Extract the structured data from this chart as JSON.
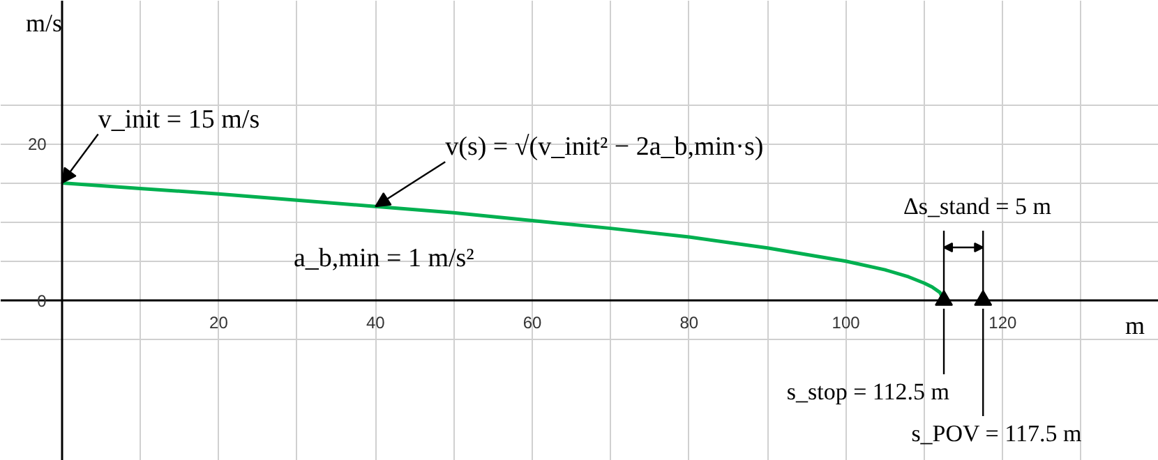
{
  "chart_data": {
    "type": "line",
    "xlabel": "m",
    "ylabel": "m/s",
    "x": [
      0,
      10,
      20,
      30,
      40,
      50,
      60,
      70,
      80,
      90,
      100,
      105,
      108,
      110,
      111,
      112,
      112.5
    ],
    "series": [
      {
        "color": "#00b050",
        "values": [
          15,
          14.3,
          13.6,
          12.8,
          12.0,
          11.2,
          10.2,
          9.2,
          8.1,
          6.7,
          5.0,
          3.9,
          3.0,
          2.2,
          1.7,
          1.0,
          0
        ]
      },
      {
        "type": "scatter",
        "marker": "triangle",
        "color": "#000000",
        "x": [
          112.5,
          117.5
        ],
        "values": [
          0,
          0
        ]
      }
    ],
    "xlim": [
      -7.8,
      139.9
    ],
    "ylim": [
      -20.5,
      38.3
    ],
    "xticks": [
      {
        "value": 0,
        "label": null
      },
      {
        "value": 10,
        "label": null
      },
      20,
      {
        "value": 30,
        "label": null
      },
      40,
      {
        "value": 50,
        "label": null
      },
      60,
      {
        "value": 70,
        "label": null
      },
      80,
      {
        "value": 90,
        "label": null
      },
      100,
      {
        "value": 110,
        "label": null
      },
      120,
      {
        "value": 130,
        "label": null
      }
    ],
    "yticks": [
      {
        "value": -5,
        "label": null
      },
      0,
      {
        "value": 5,
        "label": null
      },
      {
        "value": 10,
        "label": null
      },
      {
        "value": 15,
        "label": null
      },
      20,
      {
        "value": 25,
        "label": null
      }
    ],
    "grid": true,
    "marker": "none",
    "line_style": "solid",
    "annotations": [
      {
        "text": "v_init = 15 m/s",
        "x": 0,
        "y": 15
      },
      {
        "text": "v(s) = √(v_init² − 2a_b,min·s)",
        "x": 40,
        "y": 12.0
      },
      "s_stop = 112.5 m",
      "s_POV = 117.5 m",
      "a_b,min = 1 m/s²",
      "Δs_stand = 5 m"
    ],
    "ref_lines": [
      {
        "axis": "x",
        "value": 112.5
      },
      {
        "axis": "x",
        "value": 117.5
      }
    ]
  }
}
